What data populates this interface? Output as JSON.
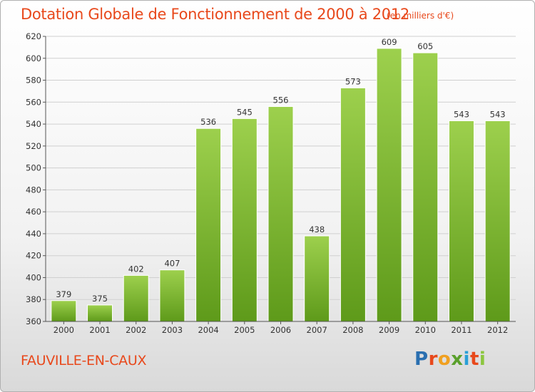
{
  "header": {
    "title": "Dotation Globale de Fonctionnement de 2000 à 2012",
    "unit": "(en milliers d'€)"
  },
  "footer": {
    "commune": "FAUVILLE-EN-CAUX",
    "logo": "Proxiti"
  },
  "colors": {
    "accent": "#e8481b",
    "bar_top": "#9dd04d",
    "bar_bottom": "#5e9a1a"
  },
  "chart_data": {
    "type": "bar",
    "categories": [
      "2000",
      "2001",
      "2002",
      "2003",
      "2004",
      "2005",
      "2006",
      "2007",
      "2008",
      "2009",
      "2010",
      "2011",
      "2012"
    ],
    "values": [
      379,
      375,
      402,
      407,
      536,
      545,
      556,
      438,
      573,
      609,
      605,
      543,
      543
    ],
    "ylim": [
      360,
      620
    ],
    "yticks": [
      360,
      380,
      400,
      420,
      440,
      460,
      480,
      500,
      520,
      540,
      560,
      580,
      600,
      620
    ],
    "grid": true
  }
}
